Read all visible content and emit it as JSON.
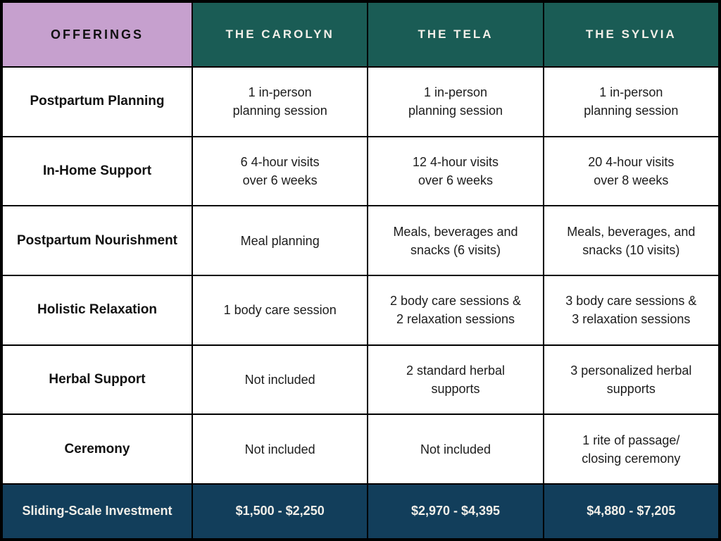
{
  "colors": {
    "frame_and_gridlines": "#000000",
    "offerings_header_bg": "#c6a0ce",
    "plan_header_bg": "#1a5c55",
    "footer_bg": "#123e5b",
    "header_footer_text": "#f2efe9",
    "body_text": "#1c1c1c",
    "cell_bg": "#ffffff"
  },
  "table": {
    "header": {
      "offerings_label": "OFFERINGS",
      "plans": [
        "THE CAROLYN",
        "THE TELA",
        "THE SYLVIA"
      ]
    },
    "rows": [
      {
        "label": "Postpartum Planning",
        "cells": [
          "1 in-person\nplanning session",
          "1 in-person\nplanning session",
          "1 in-person\nplanning session"
        ]
      },
      {
        "label": "In-Home Support",
        "cells": [
          "6 4-hour visits\nover 6 weeks",
          "12 4-hour visits\nover 6 weeks",
          "20 4-hour visits\nover 8 weeks"
        ]
      },
      {
        "label": "Postpartum Nourishment",
        "cells": [
          "Meal planning",
          "Meals, beverages and\nsnacks (6 visits)",
          "Meals, beverages, and\nsnacks (10 visits)"
        ]
      },
      {
        "label": "Holistic Relaxation",
        "cells": [
          "1 body care session",
          "2 body care sessions &\n2 relaxation sessions",
          "3 body care sessions &\n3 relaxation sessions"
        ]
      },
      {
        "label": "Herbal Support",
        "cells": [
          "Not included",
          "2 standard herbal\nsupports",
          "3 personalized herbal\nsupports"
        ]
      },
      {
        "label": "Ceremony",
        "cells": [
          "Not included",
          "Not included",
          "1 rite of passage/\nclosing ceremony"
        ]
      }
    ],
    "footer": {
      "label": "Sliding-Scale Investment",
      "prices": [
        "$1,500 - $2,250",
        "$2,970 - $4,395",
        "$4,880 - $7,205"
      ]
    }
  }
}
